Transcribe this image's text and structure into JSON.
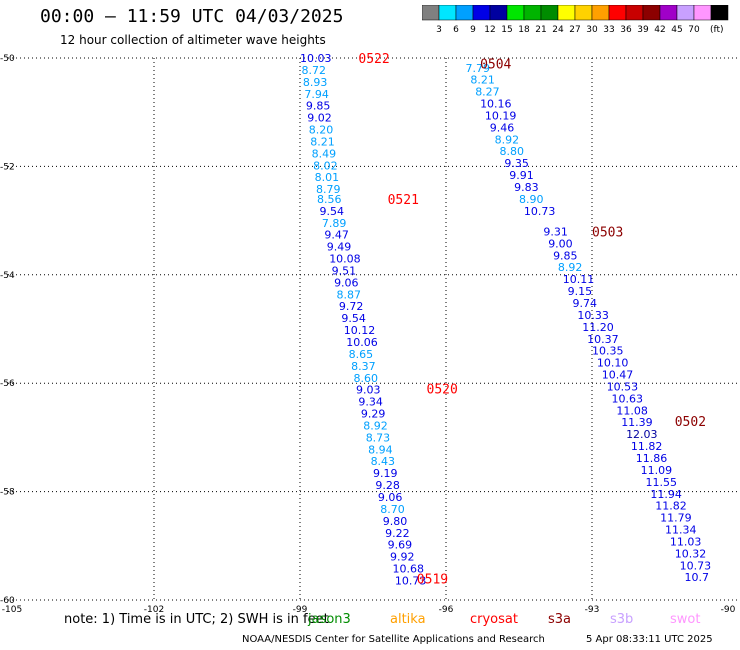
{
  "header": {
    "title": "00:00 – 11:59 UTC 04/03/2025",
    "subtitle": "12 hour collection of altimeter wave heights"
  },
  "colorbar": {
    "unit": "(ft)",
    "colors": [
      "#808080",
      "#00e6ff",
      "#00a0ff",
      "#0000e6",
      "#0000a0",
      "#00e600",
      "#00b400",
      "#008c00",
      "#ffff00",
      "#ffd200",
      "#ffa000",
      "#ff0000",
      "#c80000",
      "#8c0000",
      "#a000c8",
      "#c8a0ff",
      "#ff96ff",
      "#000000"
    ],
    "labels": [
      "3",
      "6",
      "9",
      "12",
      "15",
      "18",
      "21",
      "24",
      "27",
      "30",
      "33",
      "36",
      "39",
      "42",
      "45",
      "70"
    ]
  },
  "chart_data": {
    "type": "scatter",
    "xlim": [
      -105,
      -90
    ],
    "ylim": [
      -60,
      -50
    ],
    "x_ticks": [
      "-105",
      "-102",
      "-99",
      "-96",
      "-93",
      "-90"
    ],
    "y_ticks": [
      "-50",
      "-52",
      "-54",
      "-56",
      "-58",
      "-60"
    ],
    "grid": true,
    "tracks": [
      {
        "pass": "0522",
        "label_pos": [
          -97.8,
          -50.0
        ],
        "points": [
          {
            "lon": -99.0,
            "lat": -50.0,
            "swh": "10.03"
          },
          {
            "lon": -98.97,
            "lat": -50.22,
            "swh": "8.72"
          },
          {
            "lon": -98.94,
            "lat": -50.44,
            "swh": "8.93"
          },
          {
            "lon": -98.91,
            "lat": -50.66,
            "swh": "7.94"
          },
          {
            "lon": -98.88,
            "lat": -50.88,
            "swh": "9.85"
          },
          {
            "lon": -98.85,
            "lat": -51.1,
            "swh": "9.02"
          },
          {
            "lon": -98.82,
            "lat": -51.32,
            "swh": "8.20"
          },
          {
            "lon": -98.79,
            "lat": -51.54,
            "swh": "8.21"
          },
          {
            "lon": -98.76,
            "lat": -51.76,
            "swh": "8.49"
          },
          {
            "lon": -98.73,
            "lat": -51.98,
            "swh": "8.02"
          },
          {
            "lon": -98.7,
            "lat": -52.2,
            "swh": "8.01"
          },
          {
            "lon": -98.67,
            "lat": -52.42,
            "swh": "8.79"
          }
        ]
      },
      {
        "pass": "0521",
        "label_pos": [
          -97.2,
          -52.6
        ],
        "points": [
          {
            "lon": -98.65,
            "lat": -52.6,
            "swh": "8.56"
          },
          {
            "lon": -98.6,
            "lat": -52.82,
            "swh": "9.54"
          },
          {
            "lon": -98.55,
            "lat": -53.04,
            "swh": "7.89"
          },
          {
            "lon": -98.5,
            "lat": -53.26,
            "swh": "9.47"
          },
          {
            "lon": -98.45,
            "lat": -53.48,
            "swh": "9.49"
          },
          {
            "lon": -98.4,
            "lat": -53.7,
            "swh": "10.08"
          },
          {
            "lon": -98.35,
            "lat": -53.92,
            "swh": "9.51"
          },
          {
            "lon": -98.3,
            "lat": -54.14,
            "swh": "9.06"
          },
          {
            "lon": -98.25,
            "lat": -54.36,
            "swh": "8.87"
          },
          {
            "lon": -98.2,
            "lat": -54.58,
            "swh": "9.72"
          },
          {
            "lon": -98.15,
            "lat": -54.8,
            "swh": "9.54"
          },
          {
            "lon": -98.1,
            "lat": -55.02,
            "swh": "10.12"
          },
          {
            "lon": -98.05,
            "lat": -55.24,
            "swh": "10.06"
          },
          {
            "lon": -98.0,
            "lat": -55.46,
            "swh": "8.65"
          },
          {
            "lon": -97.95,
            "lat": -55.68,
            "swh": "8.37"
          },
          {
            "lon": -97.9,
            "lat": -55.9,
            "swh": "8.60"
          }
        ]
      },
      {
        "pass": "0520",
        "label_pos": [
          -96.4,
          -56.1
        ],
        "points": [
          {
            "lon": -97.85,
            "lat": -56.12,
            "swh": "9.03"
          },
          {
            "lon": -97.8,
            "lat": -56.34,
            "swh": "9.34"
          },
          {
            "lon": -97.75,
            "lat": -56.56,
            "swh": "9.29"
          },
          {
            "lon": -97.7,
            "lat": -56.78,
            "swh": "8.92"
          },
          {
            "lon": -97.65,
            "lat": -57.0,
            "swh": "8.73"
          },
          {
            "lon": -97.6,
            "lat": -57.22,
            "swh": "8.94"
          },
          {
            "lon": -97.55,
            "lat": -57.44,
            "swh": "8.43"
          },
          {
            "lon": -97.5,
            "lat": -57.66,
            "swh": "9.19"
          },
          {
            "lon": -97.45,
            "lat": -57.88,
            "swh": "9.28"
          },
          {
            "lon": -97.4,
            "lat": -58.1,
            "swh": "9.06"
          },
          {
            "lon": -97.35,
            "lat": -58.32,
            "swh": "8.70"
          },
          {
            "lon": -97.3,
            "lat": -58.54,
            "swh": "9.80"
          },
          {
            "lon": -97.25,
            "lat": -58.76,
            "swh": "9.22"
          },
          {
            "lon": -97.2,
            "lat": -58.98,
            "swh": "9.69"
          },
          {
            "lon": -97.15,
            "lat": -59.2,
            "swh": "9.92"
          },
          {
            "lon": -97.1,
            "lat": -59.42,
            "swh": "10.68"
          },
          {
            "lon": -97.05,
            "lat": -59.64,
            "swh": "10.73"
          }
        ]
      },
      {
        "pass": "0519",
        "label_pos": [
          -96.6,
          -59.6
        ],
        "points": []
      },
      {
        "pass": "0504",
        "label_pos": [
          -95.3,
          -50.1
        ],
        "points": [
          {
            "lon": -95.6,
            "lat": -50.18,
            "swh": "7.79"
          },
          {
            "lon": -95.5,
            "lat": -50.4,
            "swh": "8.21"
          },
          {
            "lon": -95.4,
            "lat": -50.62,
            "swh": "8.27"
          },
          {
            "lon": -95.3,
            "lat": -50.84,
            "swh": "10.16"
          },
          {
            "lon": -95.2,
            "lat": -51.06,
            "swh": "10.19"
          },
          {
            "lon": -95.1,
            "lat": -51.28,
            "swh": "9.46"
          },
          {
            "lon": -95.0,
            "lat": -51.5,
            "swh": "8.92"
          },
          {
            "lon": -94.9,
            "lat": -51.72,
            "swh": "8.80"
          },
          {
            "lon": -94.8,
            "lat": -51.94,
            "swh": "9.35"
          },
          {
            "lon": -94.7,
            "lat": -52.16,
            "swh": "9.91"
          },
          {
            "lon": -94.6,
            "lat": -52.38,
            "swh": "9.83"
          },
          {
            "lon": -94.5,
            "lat": -52.6,
            "swh": "8.90"
          },
          {
            "lon": -94.4,
            "lat": -52.82,
            "swh": "10.73"
          }
        ]
      },
      {
        "pass": "0503",
        "label_pos": [
          -93.0,
          -53.2
        ],
        "points": [
          {
            "lon": -94.0,
            "lat": -53.2,
            "swh": "9.31"
          },
          {
            "lon": -93.9,
            "lat": -53.42,
            "swh": "9.00"
          },
          {
            "lon": -93.8,
            "lat": -53.64,
            "swh": "9.85"
          },
          {
            "lon": -93.7,
            "lat": -53.86,
            "swh": "8.92"
          },
          {
            "lon": -93.6,
            "lat": -54.08,
            "swh": "10.11"
          },
          {
            "lon": -93.5,
            "lat": -54.3,
            "swh": "9.15"
          },
          {
            "lon": -93.4,
            "lat": -54.52,
            "swh": "9.74"
          },
          {
            "lon": -93.3,
            "lat": -54.74,
            "swh": "10.33"
          },
          {
            "lon": -93.2,
            "lat": -54.96,
            "swh": "11.20"
          },
          {
            "lon": -93.1,
            "lat": -55.18,
            "swh": "10.37"
          },
          {
            "lon": -93.0,
            "lat": -55.4,
            "swh": "10.35"
          },
          {
            "lon": -92.9,
            "lat": -55.62,
            "swh": "10.10"
          },
          {
            "lon": -92.8,
            "lat": -55.84,
            "swh": "10.47"
          },
          {
            "lon": -92.7,
            "lat": -56.06,
            "swh": "10.53"
          },
          {
            "lon": -92.6,
            "lat": -56.28,
            "swh": "10.63"
          }
        ]
      },
      {
        "pass": "0502",
        "label_pos": [
          -91.3,
          -56.7
        ],
        "points": [
          {
            "lon": -92.5,
            "lat": -56.5,
            "swh": "11.08"
          },
          {
            "lon": -92.4,
            "lat": -56.72,
            "swh": "11.39"
          },
          {
            "lon": -92.3,
            "lat": -56.94,
            "swh": "12.03"
          },
          {
            "lon": -92.2,
            "lat": -57.16,
            "swh": "11.82"
          },
          {
            "lon": -92.1,
            "lat": -57.38,
            "swh": "11.86"
          },
          {
            "lon": -92.0,
            "lat": -57.6,
            "swh": "11.09"
          },
          {
            "lon": -91.9,
            "lat": -57.82,
            "swh": "11.55"
          },
          {
            "lon": -91.8,
            "lat": -58.04,
            "swh": "11.94"
          },
          {
            "lon": -91.7,
            "lat": -58.26,
            "swh": "11.82"
          },
          {
            "lon": -91.6,
            "lat": -58.48,
            "swh": "11.79"
          },
          {
            "lon": -91.5,
            "lat": -58.7,
            "swh": "11.34"
          },
          {
            "lon": -91.4,
            "lat": -58.92,
            "swh": "11.03"
          },
          {
            "lon": -91.3,
            "lat": -59.14,
            "swh": "10.32"
          },
          {
            "lon": -91.2,
            "lat": -59.36,
            "swh": "10.73"
          },
          {
            "lon": -91.1,
            "lat": -59.58,
            "swh": "10.7"
          }
        ]
      }
    ]
  },
  "bottom": {
    "note": "note:  1) Time is in UTC;  2) SWH is in feet",
    "legend": [
      {
        "label": "jason3",
        "color": "#008c00"
      },
      {
        "label": "altika",
        "color": "#ffa000"
      },
      {
        "label": "cryosat",
        "color": "#ff0000"
      },
      {
        "label": "s3a",
        "color": "#8c0000"
      },
      {
        "label": "s3b",
        "color": "#c8a0ff"
      },
      {
        "label": "swot",
        "color": "#ff96ff"
      }
    ],
    "footer": "NOAA/NESDIS Center for Satellite Applications and Research",
    "footer_date": "5 Apr 08:33:11 UTC 2025"
  }
}
